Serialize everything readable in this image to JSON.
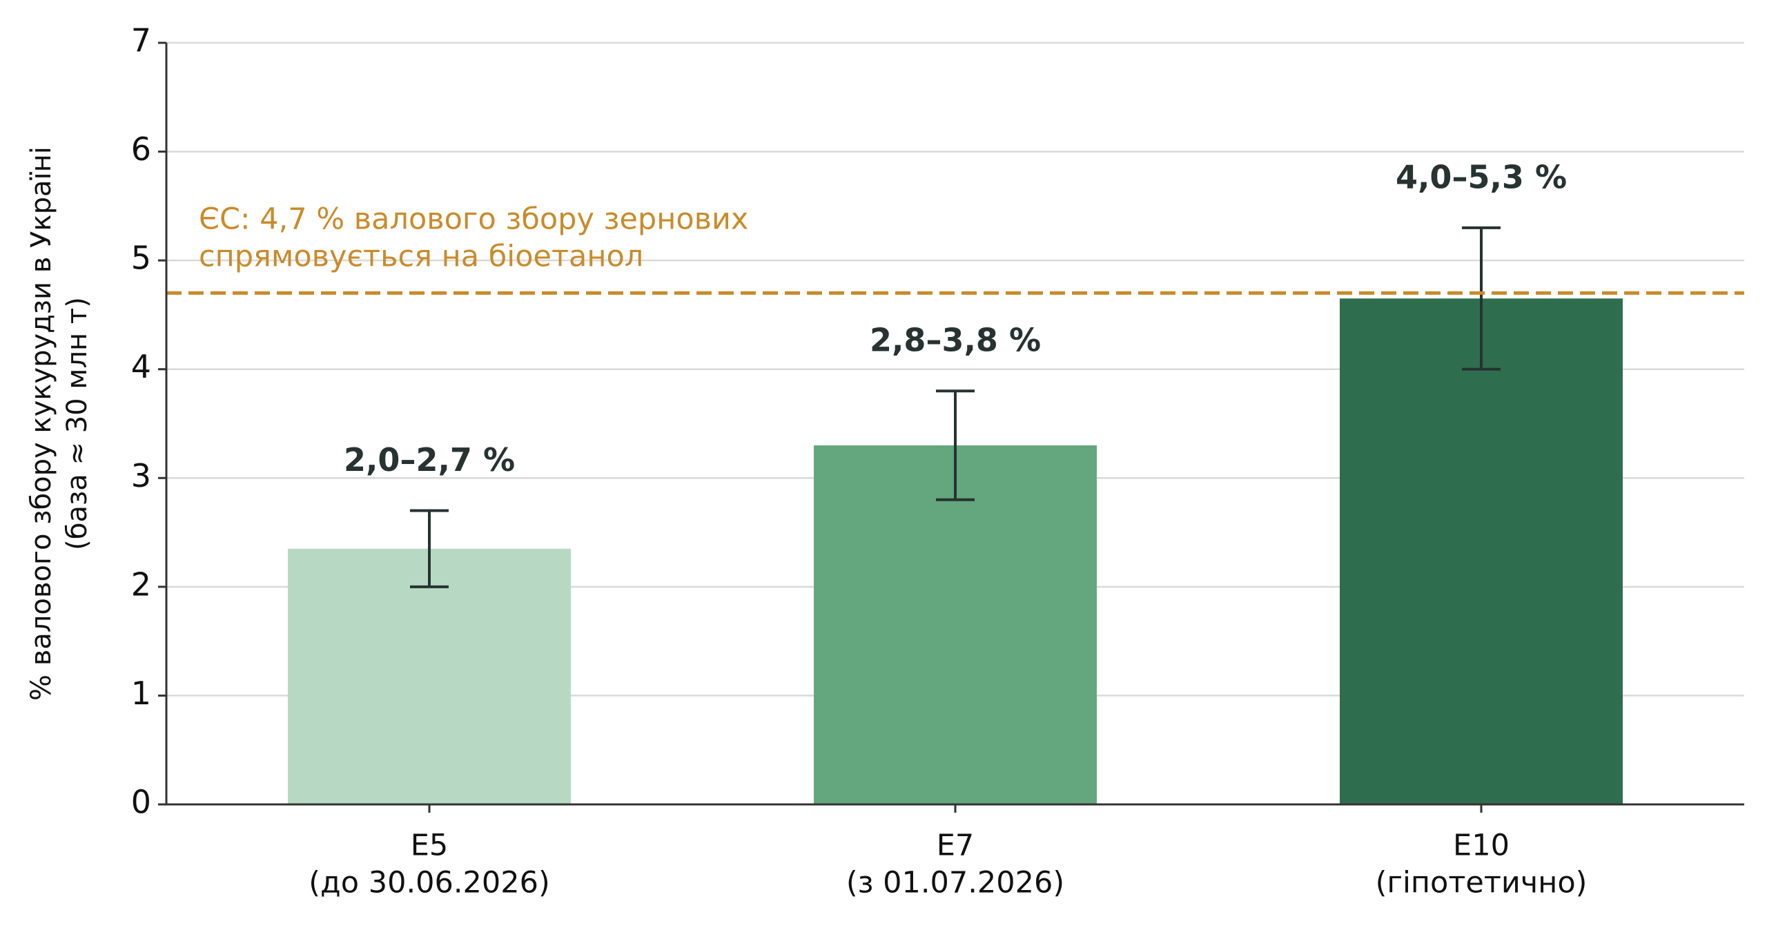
{
  "chart_data": {
    "type": "bar",
    "ylabel": [
      "% валового збору кукурудзи в Україні",
      "(база ≈ 30 млн т)"
    ],
    "categories": [
      "E5",
      "E7",
      "E10"
    ],
    "category_notes": [
      "(до 30.06.2026)",
      "(з 01.07.2026)",
      "(гіпотетично)"
    ],
    "values": [
      2.35,
      3.3,
      4.65
    ],
    "colors": [
      "#b7d9c4",
      "#64a67e",
      "#2e6e4f"
    ],
    "error_low": [
      2.0,
      2.8,
      4.0
    ],
    "error_high": [
      2.7,
      3.8,
      5.3
    ],
    "error_color": "#263330",
    "range_labels": [
      "2,0–2,7 %",
      "2,8–3,8 %",
      "4,0–5,3 %"
    ],
    "reference_line": {
      "value": 4.7,
      "color": "#c98b2a",
      "label": [
        "ЄС: 4,7 % валового збору зернових",
        "спрямовується на біоетанол"
      ]
    },
    "ylim": [
      0,
      7
    ],
    "yticks": [
      0,
      1,
      2,
      3,
      4,
      5,
      6,
      7
    ],
    "grid": true
  }
}
